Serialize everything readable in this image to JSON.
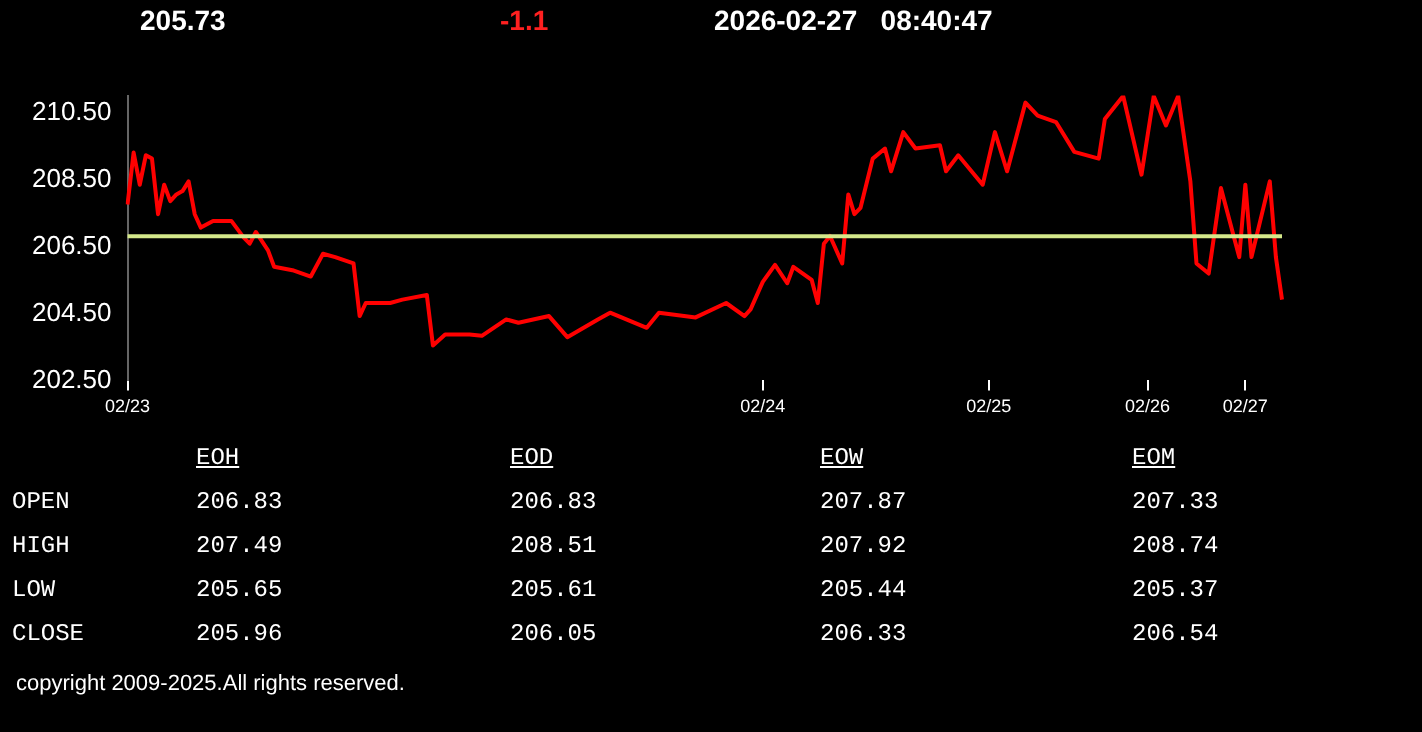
{
  "chart_data": [
    {
      "type": "line",
      "annotations": [
        "205.73",
        "-1.1",
        "2026-02-27   08:40:47"
      ],
      "categories": [
        "02/23",
        null,
        null,
        null,
        null,
        null,
        null,
        null,
        null,
        null,
        null,
        null,
        null,
        null,
        null,
        null,
        null,
        null,
        null,
        null,
        null,
        null,
        null,
        null,
        null,
        null,
        null,
        null,
        null,
        null,
        null,
        null,
        null,
        null,
        null,
        null,
        null,
        null,
        null,
        null,
        null,
        null,
        null,
        null,
        null,
        null,
        null,
        null,
        null,
        null,
        null,
        null,
        null,
        null,
        null,
        null,
        null,
        null,
        null,
        null,
        null,
        null,
        null,
        null,
        null,
        null,
        null,
        null,
        null,
        null,
        null,
        null,
        null,
        null,
        null,
        null,
        null,
        null,
        null,
        null,
        null,
        null,
        null,
        null,
        null,
        null,
        null,
        null,
        null,
        null,
        null,
        null,
        null,
        null,
        null,
        null,
        null,
        null,
        null,
        null,
        null,
        null,
        null,
        null,
        "02/24",
        null,
        null,
        null,
        null,
        null,
        null,
        null,
        null,
        null,
        null,
        null,
        null,
        null,
        null,
        null,
        null,
        null,
        null,
        null,
        null,
        null,
        null,
        null,
        null,
        null,
        null,
        null,
        null,
        null,
        null,
        null,
        null,
        null,
        null,
        null,
        null,
        "02/25",
        null,
        null,
        null,
        null,
        null,
        null,
        null,
        null,
        null,
        null,
        null,
        null,
        null,
        null,
        null,
        null,
        null,
        null,
        null,
        null,
        null,
        null,
        null,
        null,
        null,
        "02/26",
        null,
        null,
        null,
        null,
        null,
        null,
        null,
        null,
        null,
        null,
        null,
        null,
        null,
        null,
        null,
        "02/27",
        null,
        null,
        null,
        null,
        null,
        null
      ],
      "series": [
        {
          "color": "#ff0000",
          "values": [
            207.75,
            209.3,
            208.34,
            209.22,
            209.12,
            207.46,
            208.34,
            207.85,
            208.05,
            208.15,
            208.44,
            207.46,
            207.06,
            null,
            207.26,
            null,
            null,
            207.26,
            null,
            206.77,
            206.58,
            206.93,
            null,
            206.38,
            205.89,
            null,
            null,
            205.79,
            null,
            null,
            205.6,
            null,
            206.28,
            null,
            206.18,
            null,
            null,
            205.99,
            204.42,
            204.81,
            null,
            null,
            null,
            204.81,
            null,
            204.91,
            null,
            null,
            null,
            205.05,
            203.54,
            null,
            203.87,
            null,
            null,
            null,
            203.87,
            null,
            203.83,
            null,
            null,
            null,
            204.32,
            null,
            204.22,
            null,
            null,
            null,
            null,
            204.42,
            null,
            null,
            203.79,
            null,
            null,
            null,
            null,
            204.32,
            null,
            204.52,
            null,
            null,
            null,
            null,
            null,
            204.07,
            null,
            204.52,
            null,
            null,
            null,
            null,
            null,
            204.38,
            null,
            null,
            null,
            null,
            204.81,
            null,
            null,
            204.42,
            204.62,
            null,
            205.44,
            null,
            205.95,
            null,
            205.4,
            205.89,
            null,
            null,
            205.5,
            204.81,
            206.58,
            206.81,
            null,
            205.99,
            208.05,
            207.46,
            207.65,
            null,
            209.12,
            null,
            209.42,
            208.74,
            null,
            209.91,
            null,
            209.42,
            null,
            null,
            null,
            209.52,
            208.74,
            null,
            209.22,
            null,
            null,
            null,
            208.34,
            null,
            209.91,
            null,
            208.74,
            null,
            null,
            210.79,
            null,
            210.4,
            null,
            null,
            210.21,
            null,
            null,
            209.32,
            null,
            null,
            null,
            209.12,
            210.3,
            null,
            null,
            210.99,
            null,
            null,
            208.64,
            null,
            210.99,
            null,
            210.11,
            null,
            210.99,
            null,
            208.44,
            205.99,
            null,
            205.69,
            null,
            208.24,
            null,
            null,
            206.18,
            208.34,
            206.18,
            null,
            null,
            208.44,
            206.18,
            204.91
          ]
        }
      ],
      "ylim": [
        202.5,
        211.0
      ],
      "yticks": [
        {
          "value": 202.5,
          "label": "202.50"
        },
        {
          "value": 204.5,
          "label": "204.50"
        },
        {
          "value": 206.5,
          "label": "206.50"
        },
        {
          "value": 208.5,
          "label": "208.50"
        },
        {
          "value": 210.5,
          "label": "210.50"
        }
      ],
      "ref_lines": [
        {
          "axis": "y",
          "value": 206.8,
          "color": "#d4e88a"
        }
      ],
      "marker": "none",
      "line_style": "solid",
      "grid": false,
      "legend": false
    },
    {
      "type": "other",
      "categories": [
        "EOH",
        "EOD",
        "EOW",
        "EOM"
      ],
      "y_categories": [
        "OPEN",
        "HIGH",
        "LOW",
        "CLOSE"
      ],
      "cell_labels": [
        [
          "206.83",
          "206.83",
          "207.87",
          "207.33"
        ],
        [
          "207.49",
          "208.51",
          "207.92",
          "208.74"
        ],
        [
          "205.65",
          "205.61",
          "205.44",
          "205.37"
        ],
        [
          "205.96",
          "206.05",
          "206.33",
          "206.54"
        ]
      ],
      "annotations": [
        "copyright 2009-2025.All rights reserved."
      ]
    }
  ]
}
